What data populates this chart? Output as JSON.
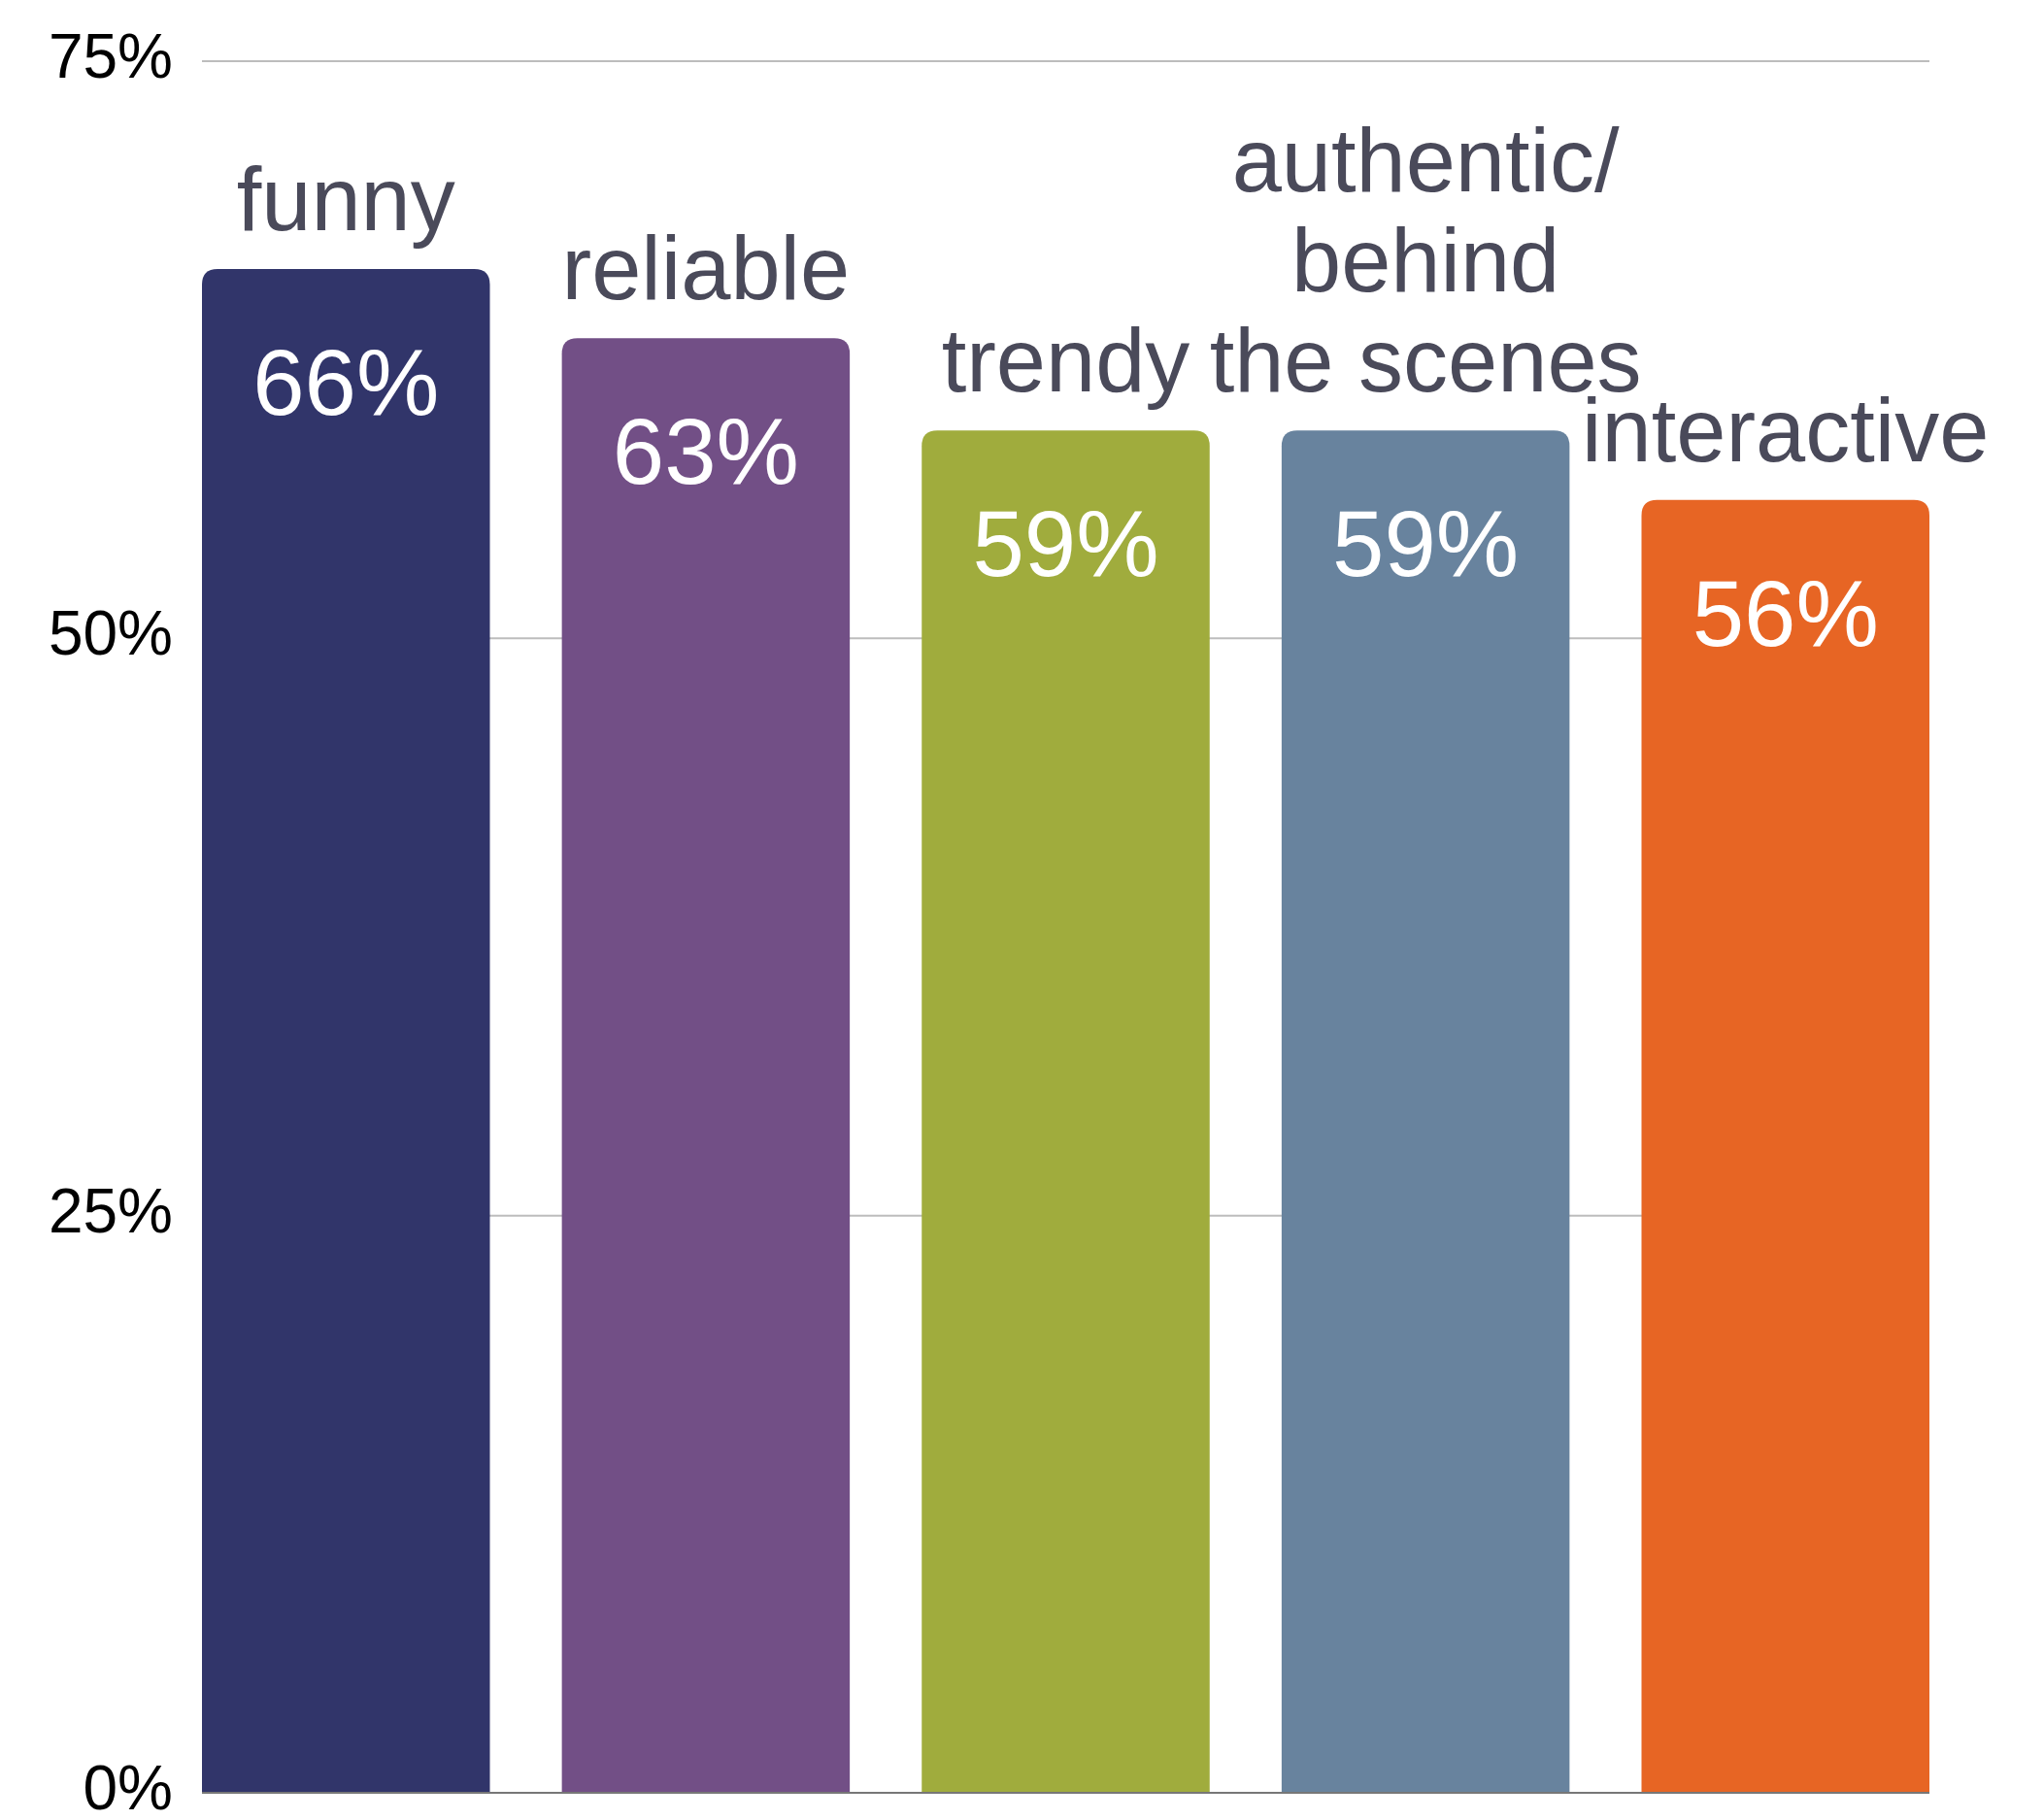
{
  "chart_data": {
    "type": "bar",
    "categories": [
      "funny",
      "reliable",
      "trendy",
      "authentic/\nbehind\nthe scenes",
      "interactive"
    ],
    "values": [
      66,
      63,
      59,
      59,
      56
    ],
    "colors": [
      "#31356a",
      "#724f86",
      "#a0ac3d",
      "#68839e",
      "#e76524"
    ],
    "ylim": [
      0,
      75
    ],
    "yticks": [
      {
        "value": 0,
        "label": "0%"
      },
      {
        "value": 25,
        "label": "25%"
      },
      {
        "value": 50,
        "label": "50%"
      },
      {
        "value": 75,
        "label": "75%"
      }
    ],
    "value_labels": [
      "66%",
      "63%",
      "59%",
      "59%",
      "56%"
    ],
    "grid": "y"
  }
}
